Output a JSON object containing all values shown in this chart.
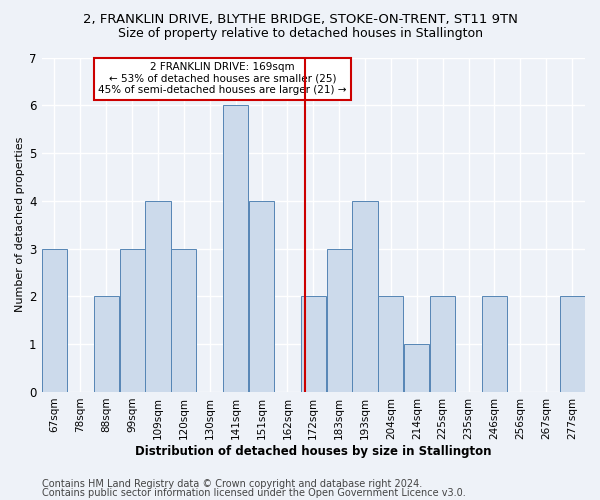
{
  "title_line1": "2, FRANKLIN DRIVE, BLYTHE BRIDGE, STOKE-ON-TRENT, ST11 9TN",
  "title_line2": "Size of property relative to detached houses in Stallington",
  "xlabel": "Distribution of detached houses by size in Stallington",
  "ylabel": "Number of detached properties",
  "bar_labels": [
    "67sqm",
    "78sqm",
    "88sqm",
    "99sqm",
    "109sqm",
    "120sqm",
    "130sqm",
    "141sqm",
    "151sqm",
    "162sqm",
    "172sqm",
    "183sqm",
    "193sqm",
    "204sqm",
    "214sqm",
    "225sqm",
    "235sqm",
    "246sqm",
    "256sqm",
    "267sqm",
    "277sqm"
  ],
  "bar_values": [
    3,
    0,
    2,
    3,
    4,
    3,
    0,
    6,
    4,
    0,
    2,
    3,
    4,
    2,
    1,
    2,
    0,
    2,
    0,
    0,
    2
  ],
  "bar_color": "#ccdaeb",
  "bar_edgecolor": "#5585b5",
  "reference_line_x": 10,
  "reference_line_color": "#cc0000",
  "ylim": [
    0,
    7
  ],
  "yticks": [
    0,
    1,
    2,
    3,
    4,
    5,
    6,
    7
  ],
  "annotation_text": "2 FRANKLIN DRIVE: 169sqm\n← 53% of detached houses are smaller (25)\n45% of semi-detached houses are larger (21) →",
  "annotation_box_color": "#ffffff",
  "annotation_box_edgecolor": "#cc0000",
  "footer_line1": "Contains HM Land Registry data © Crown copyright and database right 2024.",
  "footer_line2": "Contains public sector information licensed under the Open Government Licence v3.0.",
  "background_color": "#eef2f8",
  "grid_color": "#ffffff",
  "title_fontsize": 9.5,
  "subtitle_fontsize": 9,
  "axis_label_fontsize": 8.5,
  "ylabel_fontsize": 8,
  "tick_fontsize": 7.5,
  "footer_fontsize": 7
}
